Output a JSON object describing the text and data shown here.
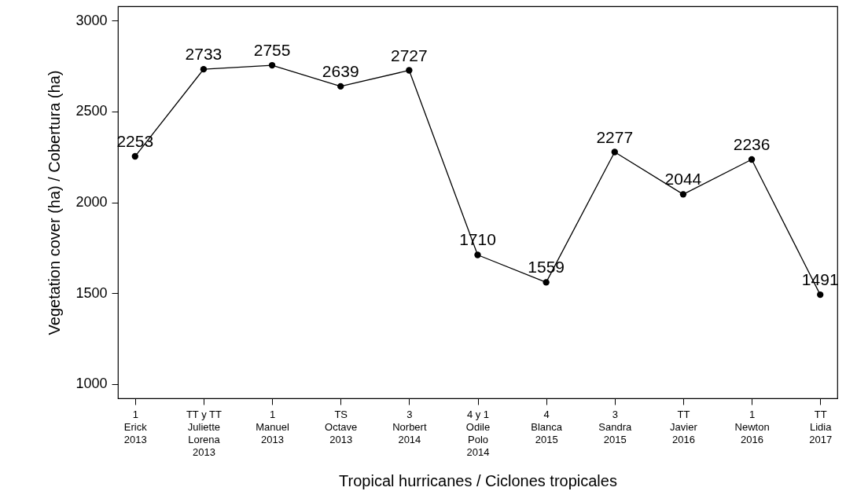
{
  "chart_data": {
    "type": "line",
    "xlabel": "Tropical hurricanes / Ciclones tropicales",
    "ylabel": "Vegetation cover (ha) / Cobertura (ha)",
    "categories": [
      "1\nErick\n2013",
      "TT y TT\nJuliette\nLorena\n2013",
      "1\nManuel\n2013",
      "TS\nOctave\n2013",
      "3\nNorbert\n2014",
      "4 y 1\nOdile\nPolo\n2014",
      "4\nBlanca\n2015",
      "3\nSandra\n2015",
      "TT\nJavier\n2016",
      "1\nNewton\n2016",
      "TT\nLidia\n2017"
    ],
    "series": [
      {
        "color": "#000000",
        "values": [
          2253,
          2733,
          2755,
          2639,
          2727,
          1710,
          1559,
          2277,
          2044,
          2236,
          1491
        ]
      }
    ],
    "ylim": [
      920,
      3080
    ],
    "yticks": [
      1000,
      1500,
      2000,
      2500,
      3000
    ],
    "grid": false,
    "marker": "circle",
    "line_style": "solid",
    "data_labels": true
  }
}
